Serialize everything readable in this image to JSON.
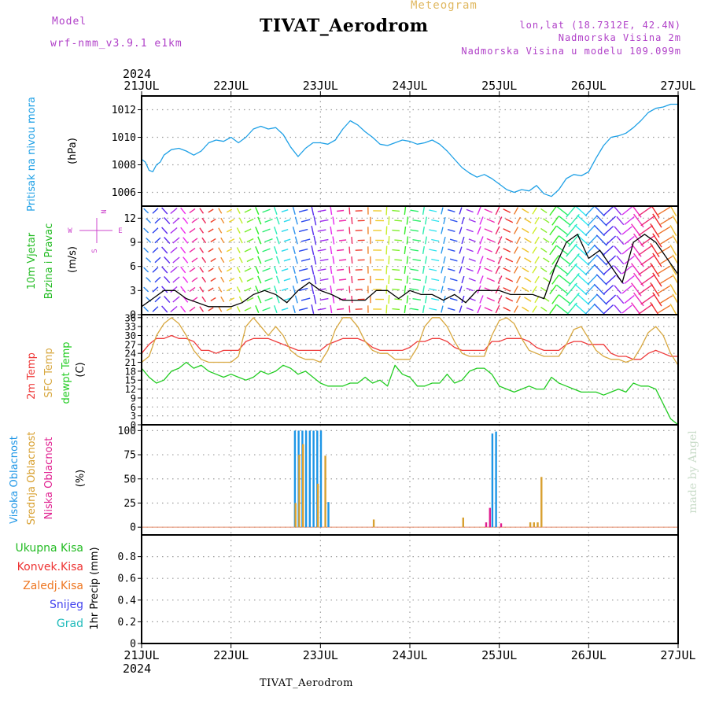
{
  "header": {
    "model_label": "Model",
    "model_name": "wrf-nmm_v3.9.1  e1km",
    "product": "Meteogram",
    "station": "TIVAT_Aerodrom",
    "lonlat": "lon,lat (18.7312E, 42.4N)",
    "elevation": "Nadmorska Visina 2m",
    "model_elevation": "Nadmorska Visina u modelu 109.099m",
    "footer_station": "TIVAT_Aerodrom",
    "credit": "made by Angel"
  },
  "colors": {
    "pressure": "#1ea0e6",
    "t2m": "#ee3a3a",
    "tsfc": "#d8a840",
    "dewpt": "#22cc22",
    "cloud_high": "#1e96e6",
    "cloud_mid": "#d8a030",
    "cloud_low": "#e02090",
    "precip_total": "#22bb22",
    "precip_conv": "#ee3333",
    "precip_frozen": "#ee7722",
    "snow": "#4444ee",
    "hail": "#22bbbb",
    "wind_label": "#cc44cc",
    "label_purple": "#b040c8"
  },
  "chart_data": {
    "type": "meteogram",
    "x_ticks": [
      "21JUL",
      "22JUL",
      "23JUL",
      "24JUL",
      "25JUL",
      "26JUL",
      "27JUL"
    ],
    "x_year": "2024",
    "xlim": [
      0,
      144
    ],
    "x_unit": "hours from 21JUL 00",
    "panels": [
      {
        "id": "pressure",
        "labels": [
          "Pritisak na nivou mora"
        ],
        "unit": "(hPa)",
        "ylim": [
          1005,
          1013
        ],
        "yticks": [
          1006,
          1008,
          1010,
          1012
        ],
        "series": [
          {
            "color_key": "pressure",
            "x": [
              0,
              1,
              2,
              3,
              4,
              5,
              6,
              8,
              10,
              12,
              14,
              16,
              18,
              20,
              22,
              24,
              26,
              28,
              30,
              32,
              34,
              36,
              38,
              40,
              42,
              44,
              46,
              48,
              50,
              52,
              54,
              56,
              58,
              60,
              62,
              64,
              66,
              68,
              70,
              72,
              74,
              76,
              78,
              80,
              82,
              84,
              86,
              88,
              90,
              92,
              94,
              96,
              98,
              100,
              102,
              104,
              106,
              108,
              110,
              112,
              114,
              116,
              118,
              120,
              122,
              124,
              126,
              128,
              130,
              132,
              134,
              136,
              138,
              140,
              142,
              144
            ],
            "values": [
              1008.4,
              1008.2,
              1007.6,
              1007.5,
              1008.0,
              1008.2,
              1008.7,
              1009.1,
              1009.2,
              1009.0,
              1008.7,
              1009.0,
              1009.6,
              1009.8,
              1009.7,
              1010.0,
              1009.6,
              1010.0,
              1010.6,
              1010.8,
              1010.6,
              1010.7,
              1010.2,
              1009.3,
              1008.6,
              1009.2,
              1009.6,
              1009.6,
              1009.5,
              1009.8,
              1010.6,
              1011.2,
              1010.9,
              1010.4,
              1010.0,
              1009.5,
              1009.4,
              1009.6,
              1009.8,
              1009.7,
              1009.5,
              1009.6,
              1009.8,
              1009.5,
              1009.0,
              1008.4,
              1007.8,
              1007.4,
              1007.1,
              1007.3,
              1007.0,
              1006.6,
              1006.2,
              1006.0,
              1006.2,
              1006.1,
              1006.5,
              1005.9,
              1005.7,
              1006.2,
              1007.0,
              1007.3,
              1007.2,
              1007.5,
              1008.5,
              1009.4,
              1010.0,
              1010.1,
              1010.3,
              1010.7,
              1011.2,
              1011.8,
              1012.1,
              1012.2,
              1012.4,
              1012.4
            ]
          }
        ]
      },
      {
        "id": "wind",
        "labels": [
          "10m Vjetar",
          "Brzina i Pravac"
        ],
        "unit": "(m/s)",
        "ylim": [
          0,
          13.5
        ],
        "yticks": [
          0,
          3,
          6,
          9,
          12
        ],
        "compass": {
          "north": "N",
          "east": "E",
          "west": "W",
          "south": "S"
        },
        "series": [
          {
            "name": "speed",
            "color": "#000000",
            "x": [
              0,
              3,
              6,
              9,
              12,
              15,
              18,
              21,
              24,
              27,
              30,
              33,
              36,
              39,
              42,
              45,
              48,
              51,
              54,
              57,
              60,
              63,
              66,
              69,
              72,
              75,
              78,
              81,
              84,
              87,
              90,
              93,
              96,
              99,
              102,
              105,
              108,
              111,
              114,
              117,
              120,
              123,
              126,
              129,
              132,
              135,
              138,
              141,
              144
            ],
            "values": [
              1.0,
              2.0,
              3.0,
              3.0,
              2.0,
              1.5,
              1.0,
              1.0,
              1.0,
              1.5,
              2.5,
              3.0,
              2.5,
              1.5,
              3.0,
              4.0,
              3.0,
              2.5,
              1.8,
              1.8,
              1.8,
              3.0,
              3.0,
              2.0,
              3.0,
              2.5,
              2.5,
              1.8,
              2.5,
              1.5,
              3.0,
              3.0,
              3.0,
              2.5,
              2.5,
              2.5,
              2.0,
              6.0,
              9.0,
              10.0,
              7.0,
              8.0,
              6.0,
              4.0,
              9.0,
              10.0,
              9.0,
              7.0,
              5.0
            ]
          }
        ]
      },
      {
        "id": "temperature",
        "labels": [
          "2m Temp",
          "SFC Temp",
          "dewpt Temp"
        ],
        "unit": "(C)",
        "ylim": [
          0,
          37
        ],
        "yticks": [
          0,
          3,
          6,
          9,
          12,
          15,
          18,
          21,
          24,
          27,
          30,
          33,
          36
        ],
        "series": [
          {
            "color_key": "t2m",
            "x": [
              0,
              2,
              4,
              6,
              8,
              10,
              12,
              14,
              16,
              18,
              20,
              22,
              24,
              26,
              28,
              30,
              32,
              34,
              36,
              38,
              40,
              42,
              44,
              46,
              48,
              50,
              52,
              54,
              56,
              58,
              60,
              62,
              64,
              66,
              68,
              70,
              72,
              74,
              76,
              78,
              80,
              82,
              84,
              86,
              88,
              90,
              92,
              94,
              96,
              98,
              100,
              102,
              104,
              106,
              108,
              110,
              112,
              114,
              116,
              118,
              120,
              122,
              124,
              126,
              128,
              130,
              132,
              134,
              136,
              138,
              140,
              142,
              144
            ],
            "values": [
              24,
              27,
              29,
              29,
              30,
              29,
              29,
              28,
              25,
              25,
              24,
              25,
              25,
              25,
              28,
              29,
              29,
              29,
              28,
              27,
              26,
              25,
              25,
              25,
              25,
              27,
              28,
              29,
              29,
              29,
              28,
              26,
              25,
              25,
              25,
              25,
              26,
              28,
              28,
              29,
              29,
              28,
              26,
              25,
              25,
              25,
              25,
              28,
              28,
              29,
              29,
              29,
              28,
              26,
              25,
              25,
              25,
              27,
              28,
              28,
              27,
              27,
              27,
              24,
              23,
              23,
              22,
              22,
              24,
              25,
              24,
              23,
              23
            ]
          },
          {
            "color_key": "tsfc",
            "x": [
              0,
              2,
              4,
              6,
              8,
              10,
              12,
              14,
              16,
              18,
              20,
              22,
              24,
              26,
              28,
              30,
              32,
              34,
              36,
              38,
              40,
              42,
              44,
              46,
              48,
              50,
              52,
              54,
              56,
              58,
              60,
              62,
              64,
              66,
              68,
              70,
              72,
              74,
              76,
              78,
              80,
              82,
              84,
              86,
              88,
              90,
              92,
              94,
              96,
              98,
              100,
              102,
              104,
              106,
              108,
              110,
              112,
              114,
              116,
              118,
              120,
              122,
              124,
              126,
              128,
              130,
              132,
              134,
              136,
              138,
              140,
              142,
              144
            ],
            "values": [
              21,
              23,
              30,
              34,
              36,
              34,
              30,
              25,
              22,
              21,
              21,
              21,
              21,
              23,
              33,
              36,
              33,
              30,
              33,
              30,
              25,
              23,
              22,
              22,
              21,
              25,
              32,
              36,
              36,
              33,
              28,
              25,
              24,
              24,
              22,
              22,
              22,
              26,
              33,
              36,
              36,
              33,
              28,
              24,
              23,
              23,
              23,
              30,
              35,
              36,
              34,
              29,
              25,
              24,
              23,
              23,
              23,
              27,
              32,
              33,
              29,
              25,
              23,
              22,
              22,
              21,
              22,
              26,
              31,
              33,
              30,
              24,
              20
            ]
          },
          {
            "color_key": "dewpt",
            "x": [
              0,
              2,
              4,
              6,
              8,
              10,
              12,
              14,
              16,
              18,
              20,
              22,
              24,
              26,
              28,
              30,
              32,
              34,
              36,
              38,
              40,
              42,
              44,
              46,
              48,
              50,
              52,
              54,
              56,
              58,
              60,
              62,
              64,
              66,
              68,
              70,
              72,
              74,
              76,
              78,
              80,
              82,
              84,
              86,
              88,
              90,
              92,
              94,
              96,
              98,
              100,
              102,
              104,
              106,
              108,
              110,
              112,
              114,
              116,
              118,
              120,
              122,
              124,
              126,
              128,
              130,
              132,
              134,
              136,
              138,
              140,
              142,
              144
            ],
            "values": [
              19,
              16,
              14,
              15,
              18,
              19,
              21,
              19,
              20,
              18,
              17,
              16,
              17,
              16,
              15,
              16,
              18,
              17,
              18,
              20,
              19,
              17,
              18,
              16,
              14,
              13,
              13,
              13,
              14,
              14,
              16,
              14,
              15,
              13,
              20,
              17,
              16,
              13,
              13,
              14,
              14,
              17,
              14,
              15,
              18,
              19,
              19,
              17,
              13,
              12,
              11,
              12,
              13,
              12,
              12,
              16,
              14,
              13,
              12,
              11,
              11,
              11,
              10,
              11,
              12,
              11,
              14,
              13,
              13,
              12,
              7,
              2,
              0
            ]
          }
        ]
      },
      {
        "id": "cloud",
        "labels": [
          "Visoka Oblacnost",
          "Srednja Oblacnost",
          "Niska Oblacnost"
        ],
        "unit": "(%)",
        "ylim": [
          -8,
          106
        ],
        "yticks": [
          0,
          25,
          50,
          75,
          100
        ],
        "bars": [
          {
            "color_key": "cloud_high",
            "x": [
              41,
              42,
              43,
              44,
              45,
              46,
              47,
              48,
              50,
              94,
              95
            ],
            "values": [
              100,
              100,
              100,
              100,
              100,
              100,
              100,
              100,
              26,
              97,
              99
            ]
          },
          {
            "color_key": "cloud_mid",
            "x": [
              41,
              42,
              43,
              47,
              49,
              62,
              86,
              104,
              105,
              106,
              107
            ],
            "values": [
              25,
              75,
              86,
              45,
              74,
              8,
              10,
              5,
              5,
              5,
              52
            ]
          },
          {
            "color_key": "cloud_low",
            "x": [
              92,
              93,
              96
            ],
            "values": [
              5,
              20,
              4
            ]
          }
        ]
      },
      {
        "id": "precip",
        "labels": [
          "Ukupna Kisa",
          "Konvek.Kisa",
          "Zaledj.Kisa",
          "Snijeg",
          "Grad"
        ],
        "unit": "1hr Precip (mm)",
        "ylim": [
          0,
          1.0
        ],
        "yticks": [
          0,
          0.2,
          0.4,
          0.6,
          0.8
        ],
        "series": []
      }
    ]
  }
}
